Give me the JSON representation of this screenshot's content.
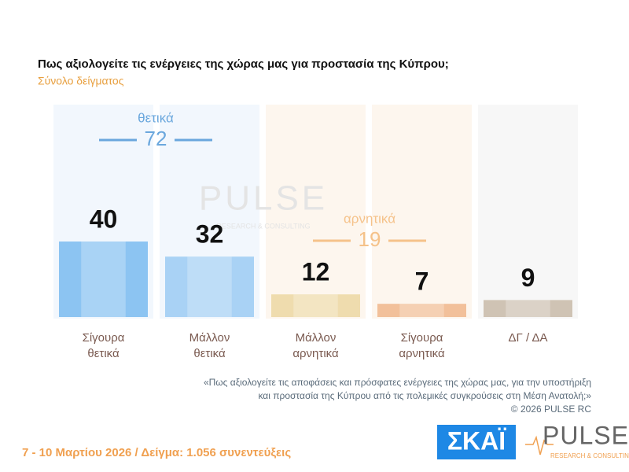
{
  "chart_data": {
    "type": "bar",
    "title": "Πως αξιολογείτε τις ενέργειες της χώρας μας για προστασία της Κύπρου;",
    "subtitle": "Σύνολο δείγματος",
    "categories": [
      "Σίγουρα θετικά",
      "Μάλλον θετικά",
      "Μάλλον αρνητικά",
      "Σίγουρα αρνητικά",
      "ΔΓ / ΔΑ"
    ],
    "values": [
      40,
      32,
      12,
      7,
      9
    ],
    "colors": [
      "#8cc4f2",
      "#a9d2f5",
      "#efdcae",
      "#f2c09a",
      "#cfc3b4"
    ],
    "groups": [
      {
        "label": "θετικά",
        "value": 72,
        "color": "#6aa7dd"
      },
      {
        "label": "αρνητικά",
        "value": 19,
        "color": "#f5c28a"
      }
    ],
    "watermark": {
      "title": "PULSE",
      "subtitle": "RESEARCH & CONSULTING"
    },
    "note": [
      "«Πως αξιολογείτε τις αποφάσεις και πρόσφατες ενέργειες της χώρας μας, για την υποστήριξη",
      "και προστασία της Κύπρου από τις πολεμικές συγκρούσεις στη Μέση Ανατολή;»"
    ],
    "copyright": "© 2026 PULSE RC",
    "footer": "7 - 10 Μαρτίου 2026  /  Δείγμα:  1.056 συνεντεύξεις",
    "logos": {
      "skai": "ΣΚΑΪ",
      "pulse": "PULSE",
      "pulse_sub": "RESEARCH & CONSULTING"
    }
  }
}
